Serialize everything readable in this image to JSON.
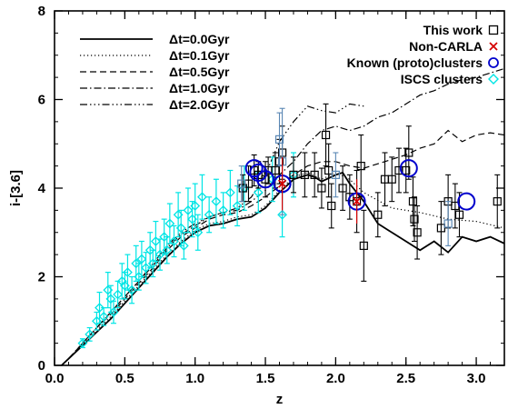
{
  "chart_data": {
    "type": "scatter",
    "xlabel": "z",
    "ylabel": "i-[3.6]",
    "xlim": [
      0,
      3.2
    ],
    "ylim": [
      0,
      8
    ],
    "x_ticks": [
      "0.0",
      "0.5",
      "1.0",
      "1.5",
      "2.0",
      "2.5",
      "3.0"
    ],
    "y_ticks": [
      "0",
      "2",
      "4",
      "6",
      "8"
    ],
    "grid": false,
    "legend_left": [
      {
        "label": "Δt=0.0Gyr",
        "style": "solid"
      },
      {
        "label": "Δt=0.1Gyr",
        "style": "dotted"
      },
      {
        "label": "Δt=0.5Gyr",
        "style": "dashed"
      },
      {
        "label": "Δt=1.0Gyr",
        "style": "dashdot"
      },
      {
        "label": "Δt=2.0Gyr",
        "style": "dashdotdotdot"
      }
    ],
    "legend_right": [
      {
        "label": "This work",
        "marker": "square",
        "color": "#000000"
      },
      {
        "label": "Non-CARLA",
        "marker": "cross",
        "color": "#d40000"
      },
      {
        "label": "Known (proto)clusters",
        "marker": "circle",
        "color": "#0000cc"
      },
      {
        "label": "ISCS clusters",
        "marker": "diamond",
        "color": "#00e5e5"
      }
    ],
    "models": [
      {
        "name": "Δt=0.0Gyr",
        "style": "solid",
        "points": [
          [
            0.05,
            0.0
          ],
          [
            0.1,
            0.15
          ],
          [
            0.2,
            0.45
          ],
          [
            0.3,
            0.75
          ],
          [
            0.4,
            1.05
          ],
          [
            0.5,
            1.4
          ],
          [
            0.6,
            1.75
          ],
          [
            0.7,
            2.1
          ],
          [
            0.8,
            2.45
          ],
          [
            0.9,
            2.75
          ],
          [
            1.0,
            3.0
          ],
          [
            1.1,
            3.15
          ],
          [
            1.2,
            3.2
          ],
          [
            1.3,
            3.3
          ],
          [
            1.4,
            3.35
          ],
          [
            1.5,
            3.55
          ],
          [
            1.6,
            3.9
          ],
          [
            1.7,
            4.2
          ],
          [
            1.8,
            4.3
          ],
          [
            1.85,
            4.25
          ],
          [
            1.9,
            4.15
          ],
          [
            2.0,
            4.3
          ],
          [
            2.05,
            4.35
          ],
          [
            2.1,
            4.1
          ],
          [
            2.2,
            3.7
          ],
          [
            2.3,
            3.2
          ],
          [
            2.4,
            3.0
          ],
          [
            2.5,
            2.8
          ],
          [
            2.6,
            2.6
          ],
          [
            2.7,
            2.8
          ],
          [
            2.8,
            2.55
          ],
          [
            2.9,
            2.9
          ],
          [
            3.0,
            2.8
          ],
          [
            3.1,
            2.9
          ],
          [
            3.2,
            2.75
          ]
        ]
      },
      {
        "name": "Δt=0.1Gyr",
        "style": "dotted",
        "points": [
          [
            0.1,
            0.15
          ],
          [
            0.2,
            0.45
          ],
          [
            0.3,
            0.8
          ],
          [
            0.4,
            1.1
          ],
          [
            0.5,
            1.45
          ],
          [
            0.6,
            1.8
          ],
          [
            0.7,
            2.15
          ],
          [
            0.8,
            2.5
          ],
          [
            0.9,
            2.8
          ],
          [
            1.0,
            3.05
          ],
          [
            1.1,
            3.2
          ],
          [
            1.2,
            3.25
          ],
          [
            1.3,
            3.35
          ],
          [
            1.4,
            3.4
          ],
          [
            1.5,
            3.6
          ],
          [
            1.6,
            3.95
          ],
          [
            1.7,
            4.25
          ],
          [
            1.8,
            4.35
          ],
          [
            1.9,
            4.2
          ],
          [
            2.0,
            4.35
          ],
          [
            2.1,
            4.2
          ],
          [
            2.2,
            3.9
          ],
          [
            2.4,
            3.55
          ],
          [
            2.6,
            3.45
          ],
          [
            2.8,
            3.3
          ],
          [
            3.0,
            3.25
          ],
          [
            3.2,
            3.1
          ]
        ]
      },
      {
        "name": "Δt=0.5Gyr",
        "style": "dashed",
        "points": [
          [
            0.1,
            0.15
          ],
          [
            0.2,
            0.5
          ],
          [
            0.3,
            0.85
          ],
          [
            0.4,
            1.15
          ],
          [
            0.5,
            1.5
          ],
          [
            0.6,
            1.85
          ],
          [
            0.7,
            2.2
          ],
          [
            0.8,
            2.6
          ],
          [
            0.9,
            2.9
          ],
          [
            1.0,
            3.1
          ],
          [
            1.1,
            3.3
          ],
          [
            1.2,
            3.4
          ],
          [
            1.3,
            3.45
          ],
          [
            1.4,
            3.6
          ],
          [
            1.5,
            3.8
          ],
          [
            1.6,
            4.05
          ],
          [
            1.7,
            4.3
          ],
          [
            1.8,
            4.5
          ],
          [
            1.9,
            4.6
          ],
          [
            2.0,
            4.6
          ],
          [
            2.1,
            4.5
          ],
          [
            2.2,
            4.45
          ],
          [
            2.3,
            4.55
          ],
          [
            2.4,
            4.65
          ],
          [
            2.5,
            4.75
          ],
          [
            2.6,
            4.9
          ],
          [
            2.7,
            5.0
          ],
          [
            2.8,
            5.3
          ],
          [
            2.9,
            5.05
          ],
          [
            3.0,
            5.2
          ],
          [
            3.1,
            5.25
          ],
          [
            3.2,
            5.2
          ]
        ]
      },
      {
        "name": "Δt=1.0Gyr",
        "style": "dashdot",
        "points": [
          [
            0.1,
            0.15
          ],
          [
            0.2,
            0.5
          ],
          [
            0.3,
            0.85
          ],
          [
            0.4,
            1.2
          ],
          [
            0.5,
            1.55
          ],
          [
            0.6,
            1.9
          ],
          [
            0.7,
            2.25
          ],
          [
            0.8,
            2.65
          ],
          [
            0.9,
            2.95
          ],
          [
            1.0,
            3.15
          ],
          [
            1.1,
            3.35
          ],
          [
            1.2,
            3.45
          ],
          [
            1.3,
            3.5
          ],
          [
            1.4,
            3.7
          ],
          [
            1.5,
            3.95
          ],
          [
            1.6,
            4.3
          ],
          [
            1.7,
            4.6
          ],
          [
            1.8,
            5.0
          ],
          [
            1.9,
            5.3
          ],
          [
            2.0,
            5.4
          ],
          [
            2.1,
            5.3
          ],
          [
            2.2,
            5.4
          ],
          [
            2.3,
            5.6
          ],
          [
            2.4,
            5.7
          ],
          [
            2.5,
            5.9
          ],
          [
            2.6,
            6.1
          ],
          [
            2.7,
            6.2
          ],
          [
            2.8,
            6.35
          ],
          [
            2.9,
            6.45
          ],
          [
            3.0,
            6.5
          ],
          [
            3.1,
            6.6
          ],
          [
            3.2,
            6.7
          ]
        ]
      },
      {
        "name": "Δt=2.0Gyr",
        "style": "dashdotdotdot",
        "points": [
          [
            0.1,
            0.15
          ],
          [
            0.2,
            0.5
          ],
          [
            0.3,
            0.85
          ],
          [
            0.4,
            1.2
          ],
          [
            0.5,
            1.55
          ],
          [
            0.6,
            1.9
          ],
          [
            0.7,
            2.3
          ],
          [
            0.8,
            2.7
          ],
          [
            0.9,
            3.0
          ],
          [
            1.0,
            3.2
          ],
          [
            1.1,
            3.35
          ],
          [
            1.2,
            3.45
          ],
          [
            1.3,
            3.55
          ],
          [
            1.4,
            3.8
          ],
          [
            1.5,
            4.3
          ],
          [
            1.6,
            5.05
          ],
          [
            1.7,
            5.5
          ],
          [
            1.8,
            5.85
          ],
          [
            1.9,
            5.75
          ],
          [
            2.0,
            5.7
          ],
          [
            2.1,
            5.9
          ],
          [
            2.2,
            5.85
          ]
        ]
      }
    ],
    "iscs_clusters": [
      [
        0.2,
        0.5,
        0.1
      ],
      [
        0.25,
        0.7,
        0.15
      ],
      [
        0.3,
        1.0,
        0.2
      ],
      [
        0.32,
        1.3,
        0.35
      ],
      [
        0.35,
        1.1,
        0.2
      ],
      [
        0.38,
        1.7,
        0.4
      ],
      [
        0.4,
        1.5,
        0.3
      ],
      [
        0.42,
        1.2,
        0.25
      ],
      [
        0.45,
        1.6,
        0.3
      ],
      [
        0.48,
        1.9,
        0.4
      ],
      [
        0.5,
        1.8,
        0.3
      ],
      [
        0.52,
        2.1,
        0.4
      ],
      [
        0.55,
        1.7,
        0.3
      ],
      [
        0.58,
        2.3,
        0.4
      ],
      [
        0.6,
        2.0,
        0.3
      ],
      [
        0.62,
        2.4,
        0.4
      ],
      [
        0.65,
        2.2,
        0.35
      ],
      [
        0.68,
        2.6,
        0.4
      ],
      [
        0.7,
        2.3,
        0.3
      ],
      [
        0.72,
        2.8,
        0.45
      ],
      [
        0.75,
        2.5,
        0.35
      ],
      [
        0.78,
        2.9,
        0.4
      ],
      [
        0.8,
        2.6,
        0.3
      ],
      [
        0.82,
        3.2,
        0.45
      ],
      [
        0.85,
        2.8,
        0.35
      ],
      [
        0.88,
        3.4,
        0.5
      ],
      [
        0.9,
        3.1,
        0.4
      ],
      [
        0.92,
        2.7,
        0.3
      ],
      [
        0.95,
        3.5,
        0.5
      ],
      [
        0.98,
        3.3,
        0.4
      ],
      [
        1.0,
        3.6,
        0.5
      ],
      [
        1.02,
        3.0,
        0.4
      ],
      [
        1.05,
        3.8,
        0.5
      ],
      [
        1.1,
        3.4,
        0.4
      ],
      [
        1.15,
        3.7,
        0.5
      ],
      [
        1.2,
        3.5,
        0.4
      ],
      [
        1.25,
        3.9,
        0.5
      ],
      [
        1.3,
        3.6,
        0.45
      ],
      [
        1.35,
        4.0,
        0.5
      ],
      [
        1.45,
        3.9,
        0.45
      ],
      [
        1.55,
        4.2,
        0.5
      ],
      [
        1.62,
        3.4,
        0.5
      ],
      [
        1.7,
        4.3,
        0.5
      ]
    ],
    "this_work": [
      [
        1.34,
        4.0,
        0.3
      ],
      [
        1.38,
        4.1,
        0.4
      ],
      [
        1.42,
        4.4,
        0.35
      ],
      [
        1.45,
        4.3,
        0.3
      ],
      [
        1.5,
        4.2,
        0.4
      ],
      [
        1.52,
        4.4,
        0.3
      ],
      [
        1.57,
        4.4,
        0.4
      ],
      [
        1.6,
        4.6,
        0.5
      ],
      [
        1.62,
        4.8,
        0.6
      ],
      [
        1.7,
        4.3,
        0.4
      ],
      [
        1.78,
        4.3,
        0.5
      ],
      [
        1.85,
        4.3,
        0.5
      ],
      [
        1.9,
        4.0,
        0.45
      ],
      [
        1.93,
        5.2,
        0.7
      ],
      [
        1.95,
        4.4,
        0.6
      ],
      [
        1.97,
        3.6,
        0.5
      ],
      [
        2.05,
        4.0,
        0.5
      ],
      [
        2.1,
        3.8,
        0.5
      ],
      [
        2.15,
        3.7,
        0.7
      ],
      [
        2.18,
        4.5,
        0.7
      ],
      [
        2.2,
        2.7,
        0.8
      ],
      [
        2.3,
        3.4,
        0.5
      ],
      [
        2.35,
        4.2,
        0.6
      ],
      [
        2.4,
        4.2,
        0.5
      ],
      [
        2.45,
        4.4,
        0.5
      ],
      [
        2.5,
        4.4,
        0.5
      ],
      [
        2.52,
        4.8,
        0.6
      ],
      [
        2.55,
        3.7,
        0.55
      ],
      [
        2.56,
        3.3,
        0.5
      ],
      [
        2.58,
        3.0,
        0.6
      ],
      [
        2.75,
        3.1,
        0.6
      ],
      [
        2.8,
        3.7,
        0.6
      ],
      [
        2.85,
        3.6,
        0.5
      ],
      [
        2.88,
        3.4,
        0.5
      ],
      [
        3.15,
        3.7,
        0.6
      ]
    ],
    "this_work_blue": [
      [
        1.33,
        4.1,
        0.4
      ],
      [
        1.6,
        5.1,
        0.6
      ],
      [
        1.62,
        4.6,
        1.2
      ],
      [
        2.0,
        4.3,
        0.5
      ],
      [
        2.8,
        3.2,
        0.5
      ]
    ],
    "non_carla": [
      [
        1.62,
        4.1,
        0.6
      ],
      [
        2.15,
        3.7,
        0.5
      ]
    ],
    "known_clusters": [
      [
        1.42,
        4.45
      ],
      [
        1.45,
        4.35
      ],
      [
        1.5,
        4.2
      ],
      [
        1.62,
        4.1
      ],
      [
        2.15,
        3.7
      ],
      [
        2.52,
        4.45
      ],
      [
        2.93,
        3.7
      ]
    ]
  }
}
